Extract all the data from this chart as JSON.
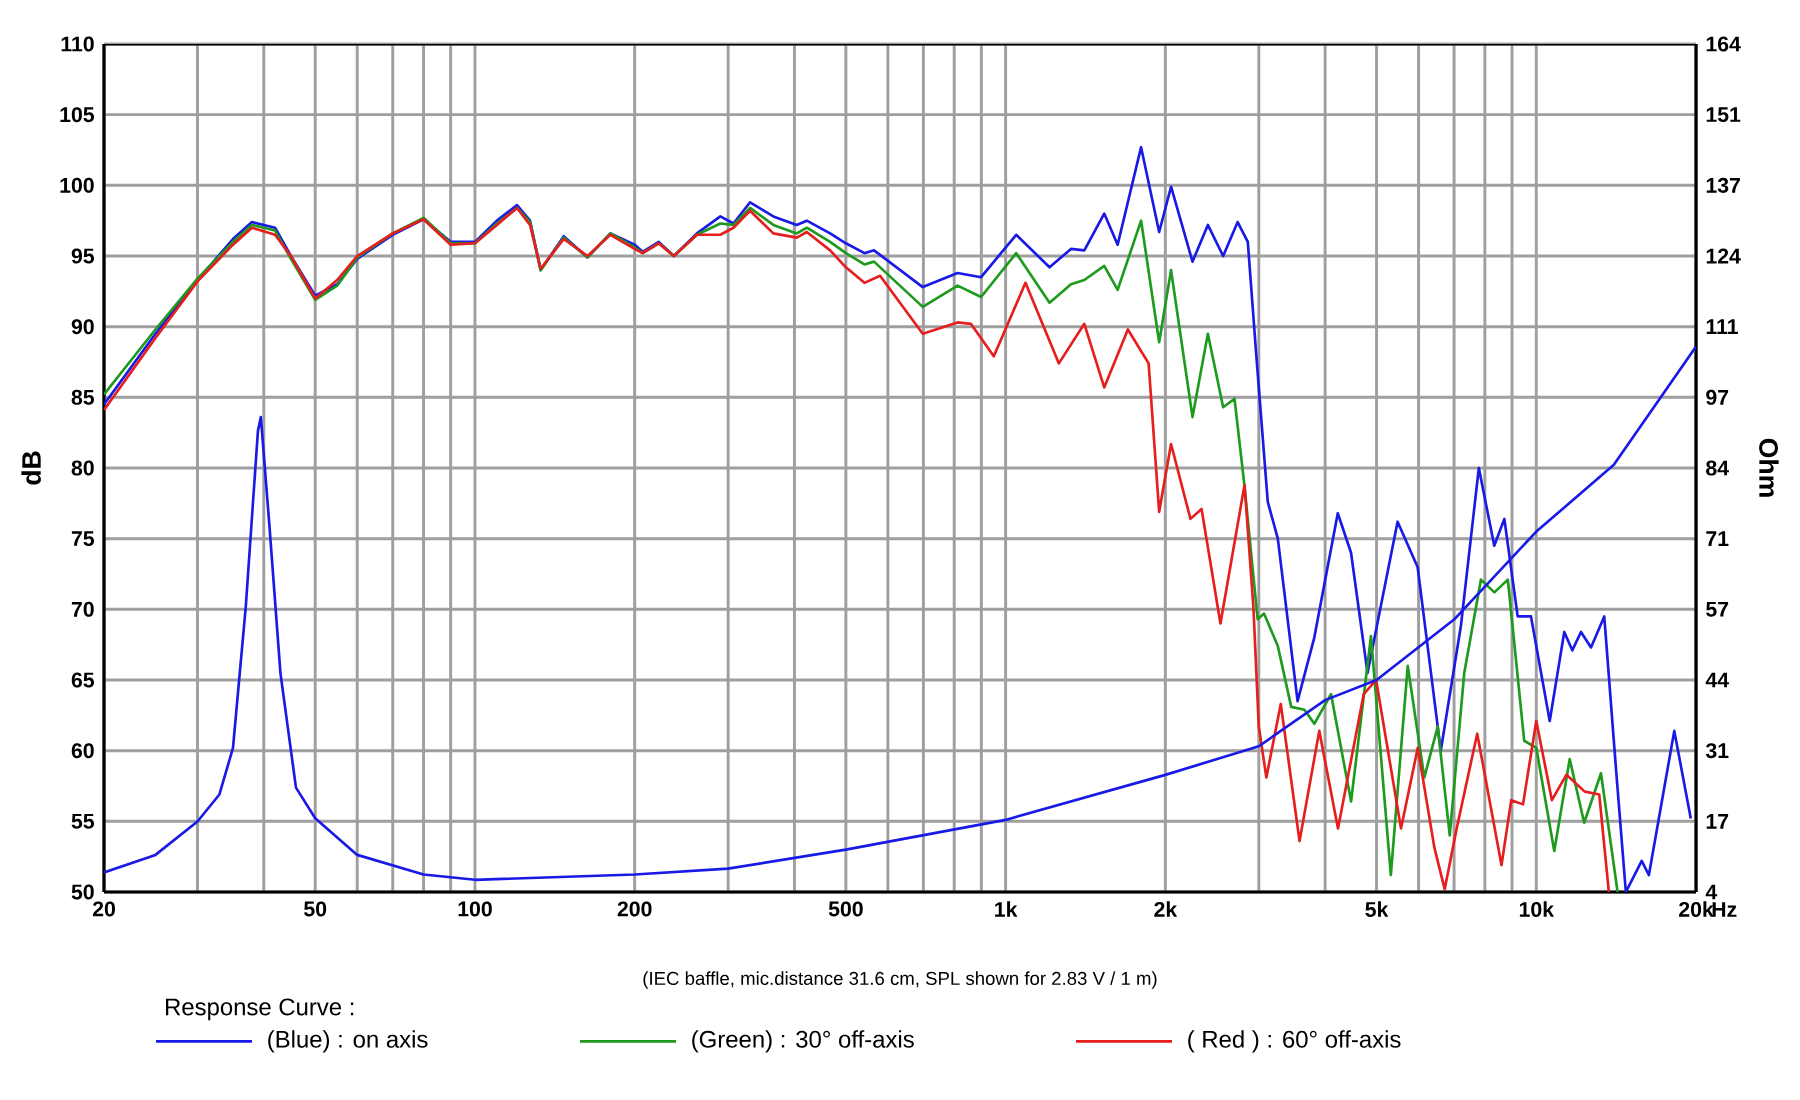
{
  "chart_data": {
    "type": "line",
    "ylabel": "dB",
    "xlabel": "Hz",
    "y2label": "Ohm",
    "legend_title": "Response Curve :",
    "legend": "bottom",
    "grid": true,
    "log": "x",
    "marker": "none",
    "line_style": "solid",
    "annotations": [
      "(IEC baffle, mic.distance 31.6 cm, SPL shown for 2.83 V / 1 m)"
    ],
    "xlim": [
      20,
      20000
    ],
    "ylim": [
      50,
      110
    ],
    "y2lim": [
      4,
      164
    ],
    "xticks": [
      20,
      {
        "value": 30,
        "label": null
      },
      {
        "value": 40,
        "label": null
      },
      50,
      {
        "value": 60,
        "label": null
      },
      {
        "value": 70,
        "label": null
      },
      {
        "value": 80,
        "label": null
      },
      {
        "value": 90,
        "label": null
      },
      100,
      200,
      {
        "value": 300,
        "label": null
      },
      {
        "value": 400,
        "label": null
      },
      500,
      {
        "value": 600,
        "label": null
      },
      {
        "value": 700,
        "label": null
      },
      {
        "value": 800,
        "label": null
      },
      {
        "value": 900,
        "label": null
      },
      {
        "value": 1000,
        "label": "1k"
      },
      {
        "value": 2000,
        "label": "2k"
      },
      {
        "value": 3000,
        "label": null
      },
      {
        "value": 4000,
        "label": null
      },
      {
        "value": 5000,
        "label": "5k"
      },
      {
        "value": 6000,
        "label": null
      },
      {
        "value": 7000,
        "label": null
      },
      {
        "value": 8000,
        "label": null
      },
      {
        "value": 9000,
        "label": null
      },
      {
        "value": 10000,
        "label": "10k"
      },
      {
        "value": 20000,
        "label": "20k"
      }
    ],
    "yticks": [
      50,
      55,
      60,
      65,
      70,
      75,
      80,
      85,
      90,
      95,
      100,
      105,
      110
    ],
    "y2ticks": [
      4,
      {
        "value": 17.333,
        "label": "17"
      },
      {
        "value": 30.667,
        "label": "31"
      },
      44,
      {
        "value": 57.333,
        "label": "57"
      },
      {
        "value": 70.667,
        "label": "71"
      },
      84,
      {
        "value": 97.333,
        "label": "97"
      },
      {
        "value": 110.667,
        "label": "111"
      },
      124,
      {
        "value": 137.333,
        "label": "137"
      },
      {
        "value": 150.667,
        "label": "151"
      },
      164
    ],
    "series": [
      {
        "name": "(Blue) : on axis",
        "color": "#1a1ae6",
        "x": [
          20,
          25,
          30,
          35,
          38,
          42,
          45,
          50,
          55,
          60,
          70,
          80,
          90,
          100,
          110,
          120,
          127,
          133,
          147,
          163,
          180,
          200,
          207,
          222,
          237,
          262,
          290,
          307,
          330,
          365,
          404,
          422,
          467,
          500,
          542,
          565,
          698,
          812,
          899,
          1047,
          1210,
          1328,
          1407,
          1534,
          1626,
          1800,
          1947,
          2050,
          2250,
          2405,
          2570,
          2737,
          2860,
          2967,
          3119,
          3258,
          3550,
          3817,
          4226,
          4476,
          4808,
          5478,
          5975,
          6607,
          7209,
          7795,
          8333,
          8706,
          9224,
          9772,
          10600,
          11290,
          11690,
          12140,
          12680,
          13430,
          14160,
          14750,
          15800,
          16300,
          18200,
          19550
        ],
        "values": [
          84.5,
          89.5,
          93.3,
          96.2,
          97.4,
          97.0,
          95.0,
          92.2,
          93.0,
          94.8,
          96.5,
          97.6,
          96.0,
          96.0,
          97.5,
          98.6,
          97.5,
          94.0,
          96.4,
          94.9,
          96.6,
          95.8,
          95.3,
          96.0,
          95.0,
          96.6,
          97.8,
          97.3,
          98.8,
          97.8,
          97.2,
          97.5,
          96.6,
          95.9,
          95.2,
          95.4,
          92.8,
          93.8,
          93.5,
          96.5,
          94.2,
          95.5,
          95.4,
          98.0,
          95.8,
          102.7,
          96.7,
          99.9,
          94.6,
          97.2,
          95.0,
          97.4,
          96.0,
          88.0,
          77.6,
          75.0,
          63.5,
          68.0,
          76.8,
          74.0,
          65.5,
          76.2,
          73.0,
          60.0,
          68.8,
          80.0,
          74.5,
          76.4,
          69.5,
          69.5,
          62.1,
          68.4,
          67.1,
          68.4,
          67.3,
          69.5,
          58.3,
          50,
          52.2,
          51.2,
          61.4,
          55.2
        ]
      },
      {
        "name": "(Green) : 30° off-axis",
        "color": "#1e9a1e",
        "x": [
          20,
          25,
          30,
          35,
          38,
          42,
          45,
          50,
          55,
          60,
          70,
          80,
          90,
          100,
          110,
          120,
          127,
          133,
          147,
          163,
          180,
          200,
          207,
          222,
          237,
          262,
          290,
          307,
          330,
          365,
          404,
          422,
          467,
          500,
          542,
          565,
          698,
          812,
          899,
          1047,
          1210,
          1328,
          1407,
          1534,
          1626,
          1800,
          1947,
          2050,
          2250,
          2405,
          2570,
          2700,
          2818,
          2985,
          3069,
          3258,
          3453,
          3657,
          3817,
          4104,
          4477,
          4880,
          5320,
          5725,
          6152,
          6520,
          6870,
          7317,
          7865,
          8338,
          8838,
          9490,
          10000,
          10810,
          11560,
          12310,
          13240,
          14230
        ],
        "values": [
          85.2,
          89.8,
          93.4,
          96.0,
          97.2,
          96.8,
          94.8,
          91.9,
          92.9,
          94.9,
          96.6,
          97.7,
          95.9,
          95.9,
          97.3,
          98.4,
          97.4,
          94.0,
          96.3,
          94.9,
          96.6,
          95.6,
          95.2,
          95.9,
          95.0,
          96.5,
          97.3,
          97.2,
          98.4,
          97.2,
          96.6,
          97.0,
          96.0,
          95.2,
          94.4,
          94.6,
          91.4,
          92.9,
          92.1,
          95.2,
          91.7,
          93.0,
          93.3,
          94.3,
          92.6,
          97.5,
          88.9,
          94.0,
          83.6,
          89.5,
          84.3,
          84.9,
          78.8,
          69.3,
          69.7,
          67.4,
          63.1,
          62.9,
          61.9,
          64.0,
          56.4,
          68.1,
          51.2,
          66.0,
          58.1,
          61.7,
          54.0,
          65.5,
          72.1,
          71.2,
          72.1,
          60.7,
          60.2,
          52.9,
          59.4,
          54.9,
          58.4,
          50
        ]
      },
      {
        "name": "( Red ) : 60° off-axis",
        "color": "#e61e1e",
        "x": [
          20,
          25,
          30,
          35,
          38,
          42,
          45,
          50,
          55,
          60,
          70,
          80,
          90,
          100,
          110,
          120,
          127,
          133,
          147,
          163,
          180,
          200,
          207,
          222,
          237,
          262,
          290,
          307,
          330,
          365,
          404,
          422,
          467,
          500,
          542,
          580,
          698,
          812,
          860,
          950,
          1090,
          1260,
          1407,
          1534,
          1700,
          1860,
          1947,
          2050,
          2230,
          2340,
          2540,
          2820,
          2930,
          3000,
          3100,
          3300,
          3580,
          3900,
          4230,
          4730,
          4990,
          5560,
          5980,
          6430,
          6720,
          7080,
          7740,
          8600,
          8970,
          9440,
          10000,
          10700,
          11400,
          12340,
          13140,
          13700
        ],
        "values": [
          84.1,
          89.2,
          93.2,
          95.8,
          97.0,
          96.5,
          95.0,
          92.0,
          93.3,
          95.0,
          96.6,
          97.6,
          95.8,
          95.9,
          97.2,
          98.4,
          97.2,
          94.1,
          96.2,
          95.0,
          96.5,
          95.5,
          95.2,
          95.9,
          95.0,
          96.5,
          96.5,
          97.0,
          98.2,
          96.6,
          96.3,
          96.7,
          95.4,
          94.2,
          93.1,
          93.6,
          89.5,
          90.3,
          90.2,
          87.9,
          93.1,
          87.4,
          90.2,
          85.7,
          89.8,
          87.4,
          76.9,
          81.7,
          76.4,
          77.1,
          69.0,
          78.8,
          70.2,
          61.7,
          58.1,
          63.3,
          53.6,
          61.4,
          54.5,
          64.0,
          65.0,
          54.5,
          60.2,
          53.1,
          50.2,
          54.5,
          61.2,
          51.9,
          56.5,
          56.2,
          62.1,
          56.5,
          58.3,
          57.1,
          56.9,
          50
        ]
      },
      {
        "color": "#1a1ae6",
        "axis": "y2",
        "x": [
          20,
          25,
          30,
          33,
          35,
          37,
          39,
          39.5,
          41,
          43,
          46,
          50,
          60,
          80,
          100,
          200,
          300,
          500,
          1000,
          2000,
          3000,
          4000,
          5000,
          7000,
          10000,
          14000,
          20000
        ],
        "values": [
          7.7,
          11.0,
          17.3,
          22.4,
          31.2,
          57.9,
          91,
          93.6,
          73,
          45.3,
          23.7,
          17.9,
          11.0,
          7.3,
          6.3,
          7.3,
          8.4,
          12.0,
          17.6,
          26.1,
          31.5,
          40.2,
          44.0,
          55.4,
          72.0,
          84.6,
          106.9
        ]
      }
    ]
  }
}
